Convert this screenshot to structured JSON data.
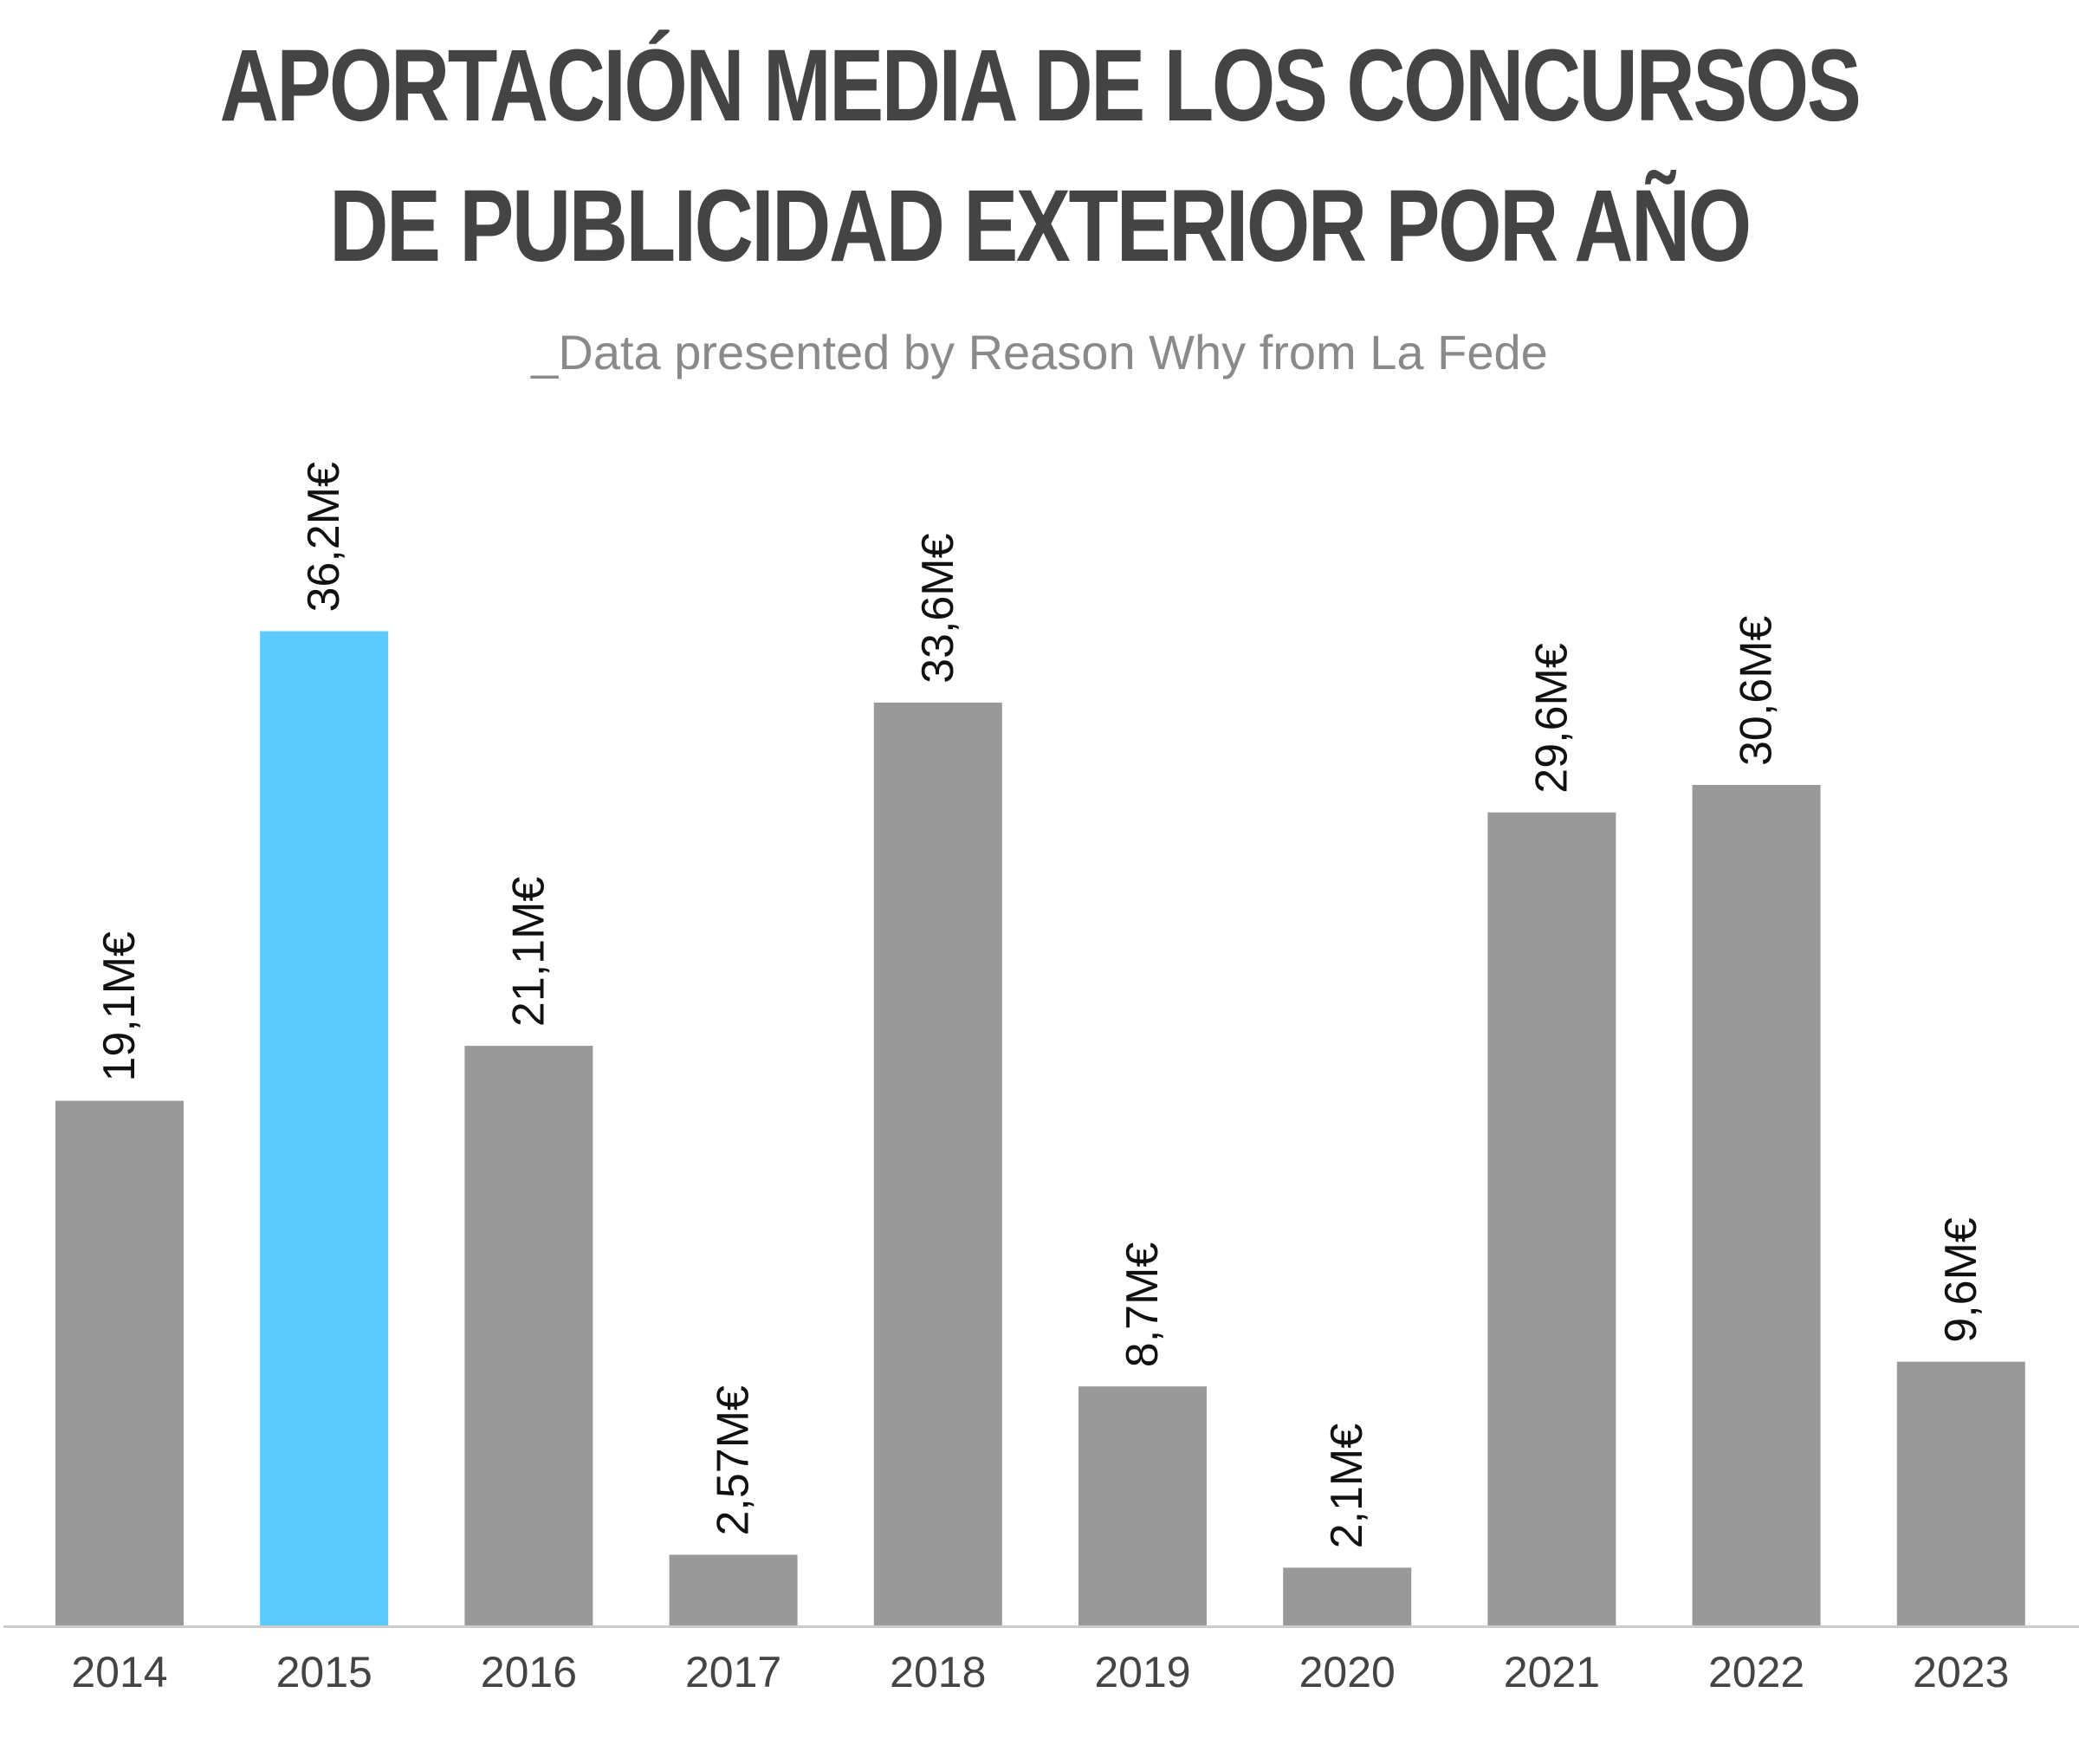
{
  "chart_data": {
    "type": "bar",
    "title": "APORTACIÓN MEDIA DE LOS CONCURSOS DE PUBLICIDAD EXTERIOR POR AÑO",
    "subtitle": "_Data presented by Reason Why from La Fede",
    "categories": [
      "2014",
      "2015",
      "2016",
      "2017",
      "2018",
      "2019",
      "2020",
      "2021",
      "2022",
      "2023"
    ],
    "values": [
      19.1,
      36.2,
      21.1,
      2.57,
      33.6,
      8.7,
      2.1,
      29.6,
      30.6,
      9.6
    ],
    "data_labels": [
      "19,1M€",
      "36,2M€",
      "21,1M€",
      "2,57M€",
      "33,6M€",
      "8,7M€",
      "2,1M€",
      "29,6M€",
      "30,6M€",
      "9,6M€"
    ],
    "highlight_index": 1,
    "colors": {
      "bar": "#999999",
      "highlight": "#5BCBFB",
      "axis": "#cccccc",
      "title": "#444444"
    },
    "xlabel": "",
    "ylabel": "",
    "grid": false,
    "legend": "none"
  }
}
